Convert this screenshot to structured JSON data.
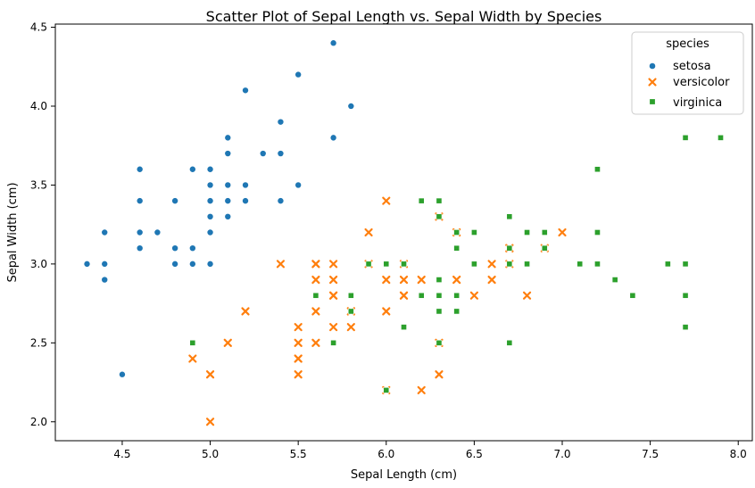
{
  "chart_data": {
    "type": "scatter",
    "title": "Scatter Plot of Sepal Length vs. Sepal Width by Species",
    "xlabel": "Sepal Length (cm)",
    "ylabel": "Sepal Width (cm)",
    "xlim": [
      4.12,
      8.08
    ],
    "ylim": [
      1.88,
      4.52
    ],
    "xticks": [
      4.5,
      5.0,
      5.5,
      6.0,
      6.5,
      7.0,
      7.5,
      8.0
    ],
    "xtick_labels": [
      "4.5",
      "5.0",
      "5.5",
      "6.0",
      "6.5",
      "7.0",
      "7.5",
      "8.0"
    ],
    "yticks": [
      2.0,
      2.5,
      3.0,
      3.5,
      4.0,
      4.5
    ],
    "ytick_labels": [
      "2.0",
      "2.5",
      "3.0",
      "3.5",
      "4.0",
      "4.5"
    ],
    "legend": {
      "title": "species",
      "position": "top-right"
    },
    "series": [
      {
        "name": "setosa",
        "marker": "circle",
        "color": "#1f77b4",
        "points": [
          [
            5.1,
            3.5
          ],
          [
            4.9,
            3.0
          ],
          [
            4.7,
            3.2
          ],
          [
            4.6,
            3.1
          ],
          [
            5.0,
            3.6
          ],
          [
            5.4,
            3.9
          ],
          [
            4.6,
            3.4
          ],
          [
            5.0,
            3.4
          ],
          [
            4.4,
            2.9
          ],
          [
            4.9,
            3.1
          ],
          [
            5.4,
            3.7
          ],
          [
            4.8,
            3.4
          ],
          [
            4.8,
            3.0
          ],
          [
            4.3,
            3.0
          ],
          [
            5.8,
            4.0
          ],
          [
            5.7,
            4.4
          ],
          [
            5.4,
            3.9
          ],
          [
            5.1,
            3.5
          ],
          [
            5.7,
            3.8
          ],
          [
            5.1,
            3.8
          ],
          [
            5.4,
            3.4
          ],
          [
            5.1,
            3.7
          ],
          [
            4.6,
            3.6
          ],
          [
            5.1,
            3.3
          ],
          [
            4.8,
            3.4
          ],
          [
            5.0,
            3.0
          ],
          [
            5.0,
            3.4
          ],
          [
            5.2,
            3.5
          ],
          [
            5.2,
            3.4
          ],
          [
            4.7,
            3.2
          ],
          [
            4.8,
            3.1
          ],
          [
            5.4,
            3.4
          ],
          [
            5.2,
            4.1
          ],
          [
            5.5,
            4.2
          ],
          [
            4.9,
            3.1
          ],
          [
            5.0,
            3.2
          ],
          [
            5.5,
            3.5
          ],
          [
            4.9,
            3.6
          ],
          [
            4.4,
            3.0
          ],
          [
            5.1,
            3.4
          ],
          [
            5.0,
            3.5
          ],
          [
            4.5,
            2.3
          ],
          [
            4.4,
            3.2
          ],
          [
            5.0,
            3.5
          ],
          [
            5.1,
            3.8
          ],
          [
            4.8,
            3.0
          ],
          [
            5.1,
            3.8
          ],
          [
            4.6,
            3.2
          ],
          [
            5.3,
            3.7
          ],
          [
            5.0,
            3.3
          ]
        ]
      },
      {
        "name": "versicolor",
        "marker": "x",
        "color": "#ff7f0e",
        "points": [
          [
            7.0,
            3.2
          ],
          [
            6.4,
            3.2
          ],
          [
            6.9,
            3.1
          ],
          [
            5.5,
            2.3
          ],
          [
            6.5,
            2.8
          ],
          [
            5.7,
            2.8
          ],
          [
            6.3,
            3.3
          ],
          [
            4.9,
            2.4
          ],
          [
            6.6,
            2.9
          ],
          [
            5.2,
            2.7
          ],
          [
            5.0,
            2.0
          ],
          [
            5.9,
            3.0
          ],
          [
            6.0,
            2.2
          ],
          [
            6.1,
            2.9
          ],
          [
            5.6,
            2.9
          ],
          [
            6.7,
            3.1
          ],
          [
            5.6,
            3.0
          ],
          [
            5.8,
            2.7
          ],
          [
            6.2,
            2.2
          ],
          [
            5.6,
            2.5
          ],
          [
            5.9,
            3.2
          ],
          [
            6.1,
            2.8
          ],
          [
            6.3,
            2.5
          ],
          [
            6.1,
            2.8
          ],
          [
            6.4,
            2.9
          ],
          [
            6.6,
            3.0
          ],
          [
            6.8,
            2.8
          ],
          [
            6.7,
            3.0
          ],
          [
            6.0,
            2.9
          ],
          [
            5.7,
            2.6
          ],
          [
            5.5,
            2.4
          ],
          [
            5.5,
            2.4
          ],
          [
            5.8,
            2.7
          ],
          [
            6.0,
            2.7
          ],
          [
            5.4,
            3.0
          ],
          [
            6.0,
            3.4
          ],
          [
            6.7,
            3.1
          ],
          [
            6.3,
            2.3
          ],
          [
            5.6,
            3.0
          ],
          [
            5.5,
            2.5
          ],
          [
            5.5,
            2.6
          ],
          [
            6.1,
            3.0
          ],
          [
            5.8,
            2.6
          ],
          [
            5.0,
            2.3
          ],
          [
            5.6,
            2.7
          ],
          [
            5.7,
            3.0
          ],
          [
            5.7,
            2.9
          ],
          [
            6.2,
            2.9
          ],
          [
            5.1,
            2.5
          ],
          [
            5.7,
            2.8
          ]
        ]
      },
      {
        "name": "virginica",
        "marker": "square",
        "color": "#2ca02c",
        "points": [
          [
            6.3,
            3.3
          ],
          [
            5.8,
            2.7
          ],
          [
            7.1,
            3.0
          ],
          [
            6.3,
            2.9
          ],
          [
            6.5,
            3.0
          ],
          [
            7.6,
            3.0
          ],
          [
            4.9,
            2.5
          ],
          [
            7.3,
            2.9
          ],
          [
            6.7,
            2.5
          ],
          [
            7.2,
            3.6
          ],
          [
            6.5,
            3.2
          ],
          [
            6.4,
            2.7
          ],
          [
            6.8,
            3.0
          ],
          [
            5.7,
            2.5
          ],
          [
            5.8,
            2.8
          ],
          [
            6.4,
            3.2
          ],
          [
            6.5,
            3.0
          ],
          [
            7.7,
            3.8
          ],
          [
            7.7,
            2.6
          ],
          [
            6.0,
            2.2
          ],
          [
            6.9,
            3.2
          ],
          [
            5.6,
            2.8
          ],
          [
            7.7,
            2.8
          ],
          [
            6.3,
            2.7
          ],
          [
            6.7,
            3.3
          ],
          [
            7.2,
            3.2
          ],
          [
            6.2,
            2.8
          ],
          [
            6.1,
            3.0
          ],
          [
            6.4,
            2.8
          ],
          [
            7.2,
            3.0
          ],
          [
            7.4,
            2.8
          ],
          [
            7.9,
            3.8
          ],
          [
            6.4,
            2.8
          ],
          [
            6.3,
            2.8
          ],
          [
            6.1,
            2.6
          ],
          [
            7.7,
            3.0
          ],
          [
            6.3,
            3.4
          ],
          [
            6.4,
            3.1
          ],
          [
            6.0,
            3.0
          ],
          [
            6.9,
            3.1
          ],
          [
            6.7,
            3.1
          ],
          [
            6.9,
            3.1
          ],
          [
            5.8,
            2.7
          ],
          [
            6.8,
            3.2
          ],
          [
            6.7,
            3.3
          ],
          [
            6.7,
            3.0
          ],
          [
            6.3,
            2.5
          ],
          [
            6.5,
            3.0
          ],
          [
            6.2,
            3.4
          ],
          [
            5.9,
            3.0
          ]
        ]
      }
    ]
  }
}
